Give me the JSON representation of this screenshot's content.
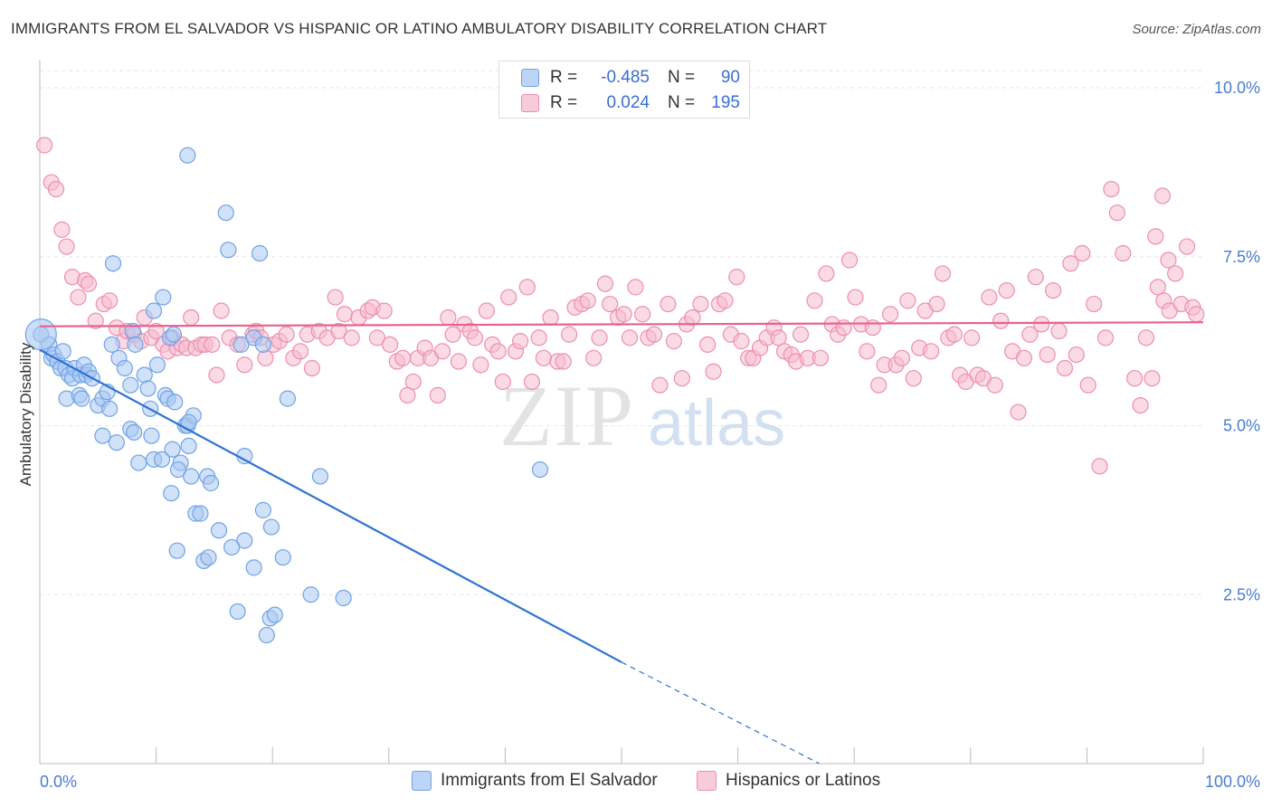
{
  "title": "IMMIGRANTS FROM EL SALVADOR VS HISPANIC OR LATINO AMBULATORY DISABILITY CORRELATION CHART",
  "source": "Source: ZipAtlas.com",
  "watermark": {
    "zip": "ZIP",
    "atlas": "atlas"
  },
  "colors": {
    "blue": "#6fa3e6",
    "blue_fill": "#a9c8f2",
    "pink": "#ec8fb0",
    "pink_fill": "#f5bcd0",
    "blue_line": "#2f72d3",
    "pink_line": "#e8628e",
    "accent_text": "#3b6fd0"
  },
  "legend": {
    "rows": [
      {
        "r_label": "R =",
        "r_value": "-0.485",
        "n_label": "N =",
        "n_value": "90"
      },
      {
        "r_label": "R =",
        "r_value": "0.024",
        "n_label": "N =",
        "n_value": "195"
      }
    ]
  },
  "bottom_legend": {
    "series_a": "Immigrants from El Salvador",
    "series_b": "Hispanics or Latinos"
  },
  "chart_data": {
    "type": "scatter",
    "ylabel": "Ambulatory Disability",
    "xlabel": "",
    "x_tick_labels": [
      "0.0%",
      "100.0%"
    ],
    "y_tick_labels": [
      "2.5%",
      "5.0%",
      "7.5%",
      "10.0%"
    ],
    "y_ticks": [
      2.5,
      5.0,
      7.5,
      10.0
    ],
    "xlim": [
      0,
      100
    ],
    "ylim": [
      0,
      10.2
    ],
    "grid": true,
    "legend_position": "top-center",
    "series": [
      {
        "name": "Immigrants from El Salvador",
        "color": "#6fa3e6",
        "trend": {
          "x": [
            0,
            50,
            67
          ],
          "y": [
            6.12,
            1.5,
            0.0
          ],
          "solid_until_x": 50
        },
        "points": [
          [
            0.1,
            6.35
          ],
          [
            0.8,
            6.2
          ],
          [
            1.0,
            6.0
          ],
          [
            1.2,
            6.05
          ],
          [
            1.5,
            5.95
          ],
          [
            1.8,
            5.85
          ],
          [
            2.0,
            6.1
          ],
          [
            2.2,
            5.85
          ],
          [
            2.5,
            5.75
          ],
          [
            2.8,
            5.7
          ],
          [
            3.0,
            5.85
          ],
          [
            3.5,
            5.75
          ],
          [
            3.8,
            5.9
          ],
          [
            4.0,
            5.75
          ],
          [
            4.2,
            5.8
          ],
          [
            4.5,
            5.7
          ],
          [
            2.3,
            5.4
          ],
          [
            3.4,
            5.45
          ],
          [
            3.6,
            5.4
          ],
          [
            5.0,
            5.3
          ],
          [
            5.4,
            5.4
          ],
          [
            5.8,
            5.5
          ],
          [
            6.0,
            5.25
          ],
          [
            6.8,
            6.0
          ],
          [
            6.2,
            6.2
          ],
          [
            7.3,
            5.85
          ],
          [
            7.8,
            5.6
          ],
          [
            8.0,
            6.4
          ],
          [
            8.2,
            6.2
          ],
          [
            9.0,
            5.75
          ],
          [
            9.3,
            5.55
          ],
          [
            9.5,
            5.25
          ],
          [
            9.8,
            6.7
          ],
          [
            10.1,
            5.9
          ],
          [
            10.6,
            6.9
          ],
          [
            10.8,
            5.45
          ],
          [
            11.2,
            6.3
          ],
          [
            11.5,
            6.35
          ],
          [
            11.0,
            5.4
          ],
          [
            11.6,
            5.35
          ],
          [
            12.5,
            5.0
          ],
          [
            12.7,
            5.0
          ],
          [
            13.2,
            5.15
          ],
          [
            5.4,
            4.85
          ],
          [
            6.6,
            4.75
          ],
          [
            7.8,
            4.95
          ],
          [
            8.1,
            4.9
          ],
          [
            9.6,
            4.85
          ],
          [
            8.5,
            4.45
          ],
          [
            9.8,
            4.5
          ],
          [
            10.5,
            4.5
          ],
          [
            11.4,
            4.65
          ],
          [
            12.1,
            4.45
          ],
          [
            12.8,
            4.7
          ],
          [
            11.9,
            4.35
          ],
          [
            13.0,
            4.25
          ],
          [
            14.4,
            4.25
          ],
          [
            14.7,
            4.15
          ],
          [
            17.6,
            4.55
          ],
          [
            11.3,
            4.0
          ],
          [
            13.4,
            3.7
          ],
          [
            13.8,
            3.7
          ],
          [
            15.4,
            3.45
          ],
          [
            17.6,
            3.3
          ],
          [
            19.2,
            3.75
          ],
          [
            19.9,
            3.5
          ],
          [
            11.8,
            3.15
          ],
          [
            14.1,
            3.0
          ],
          [
            14.5,
            3.05
          ],
          [
            16.5,
            3.2
          ],
          [
            18.4,
            2.9
          ],
          [
            20.9,
            3.05
          ],
          [
            17.0,
            2.25
          ],
          [
            19.8,
            2.15
          ],
          [
            20.2,
            2.2
          ],
          [
            19.5,
            1.9
          ],
          [
            23.3,
            2.5
          ],
          [
            26.1,
            2.45
          ],
          [
            12.7,
            9.0
          ],
          [
            16.0,
            8.15
          ],
          [
            16.2,
            7.6
          ],
          [
            18.9,
            7.55
          ],
          [
            6.3,
            7.4
          ],
          [
            17.3,
            6.2
          ],
          [
            18.4,
            6.3
          ],
          [
            19.2,
            6.2
          ],
          [
            21.3,
            5.4
          ],
          [
            24.1,
            4.25
          ],
          [
            43.0,
            4.35
          ],
          [
            12.8,
            5.05
          ]
        ]
      },
      {
        "name": "Hispanics or Latinos",
        "color": "#ec8fb0",
        "trend": {
          "x": [
            0,
            100
          ],
          "y": [
            6.47,
            6.53
          ],
          "solid_until_x": 100
        },
        "points": [
          [
            0.4,
            9.15
          ],
          [
            1.0,
            8.6
          ],
          [
            1.4,
            8.5
          ],
          [
            1.9,
            7.9
          ],
          [
            2.3,
            7.65
          ],
          [
            2.8,
            7.2
          ],
          [
            3.3,
            6.9
          ],
          [
            3.9,
            7.15
          ],
          [
            4.2,
            7.1
          ],
          [
            4.8,
            6.55
          ],
          [
            5.5,
            6.8
          ],
          [
            6.0,
            6.85
          ],
          [
            6.6,
            6.45
          ],
          [
            7.2,
            6.25
          ],
          [
            7.5,
            6.4
          ],
          [
            8.1,
            6.35
          ],
          [
            8.7,
            6.25
          ],
          [
            9.0,
            6.6
          ],
          [
            9.6,
            6.3
          ],
          [
            10.0,
            6.4
          ],
          [
            10.6,
            6.2
          ],
          [
            11.0,
            6.1
          ],
          [
            11.4,
            6.3
          ],
          [
            11.8,
            6.15
          ],
          [
            12.2,
            6.2
          ],
          [
            12.6,
            6.15
          ],
          [
            13.0,
            6.6
          ],
          [
            13.4,
            6.15
          ],
          [
            13.9,
            6.2
          ],
          [
            14.2,
            6.2
          ],
          [
            14.8,
            6.2
          ],
          [
            15.2,
            5.75
          ],
          [
            15.6,
            6.7
          ],
          [
            16.3,
            6.3
          ],
          [
            17.0,
            6.2
          ],
          [
            17.6,
            5.9
          ],
          [
            18.3,
            6.35
          ],
          [
            18.6,
            6.4
          ],
          [
            19.0,
            6.3
          ],
          [
            19.4,
            6.0
          ],
          [
            20.1,
            6.2
          ],
          [
            20.6,
            6.25
          ],
          [
            21.2,
            6.35
          ],
          [
            21.8,
            6.0
          ],
          [
            22.4,
            6.1
          ],
          [
            23.0,
            6.35
          ],
          [
            23.4,
            5.85
          ],
          [
            24.0,
            6.4
          ],
          [
            24.7,
            6.3
          ],
          [
            25.4,
            6.9
          ],
          [
            25.7,
            6.4
          ],
          [
            26.2,
            6.65
          ],
          [
            26.8,
            6.3
          ],
          [
            27.4,
            6.6
          ],
          [
            28.2,
            6.7
          ],
          [
            28.6,
            6.75
          ],
          [
            29.0,
            6.3
          ],
          [
            29.6,
            6.7
          ],
          [
            30.1,
            6.2
          ],
          [
            30.7,
            5.95
          ],
          [
            31.2,
            6.0
          ],
          [
            31.6,
            5.45
          ],
          [
            32.1,
            5.65
          ],
          [
            32.5,
            6.0
          ],
          [
            33.1,
            6.15
          ],
          [
            33.6,
            6.0
          ],
          [
            34.2,
            5.45
          ],
          [
            34.6,
            6.1
          ],
          [
            35.1,
            6.6
          ],
          [
            35.5,
            6.35
          ],
          [
            36.0,
            5.95
          ],
          [
            36.5,
            6.5
          ],
          [
            37.0,
            6.4
          ],
          [
            37.4,
            6.3
          ],
          [
            37.9,
            5.9
          ],
          [
            38.4,
            6.7
          ],
          [
            38.9,
            6.2
          ],
          [
            39.4,
            6.1
          ],
          [
            39.8,
            5.65
          ],
          [
            40.3,
            6.9
          ],
          [
            40.9,
            6.1
          ],
          [
            41.3,
            6.25
          ],
          [
            41.9,
            7.05
          ],
          [
            42.3,
            5.65
          ],
          [
            42.9,
            6.3
          ],
          [
            43.3,
            6.0
          ],
          [
            43.9,
            6.6
          ],
          [
            44.5,
            5.95
          ],
          [
            45.0,
            5.95
          ],
          [
            45.5,
            6.35
          ],
          [
            46.0,
            6.75
          ],
          [
            46.6,
            6.8
          ],
          [
            47.1,
            6.85
          ],
          [
            47.6,
            6.0
          ],
          [
            48.1,
            6.3
          ],
          [
            48.6,
            7.1
          ],
          [
            49.0,
            6.8
          ],
          [
            49.7,
            6.6
          ],
          [
            50.2,
            6.65
          ],
          [
            50.7,
            6.3
          ],
          [
            51.2,
            7.05
          ],
          [
            51.8,
            6.65
          ],
          [
            52.3,
            6.3
          ],
          [
            52.8,
            6.35
          ],
          [
            53.3,
            5.6
          ],
          [
            54.0,
            6.8
          ],
          [
            54.5,
            6.25
          ],
          [
            55.2,
            5.7
          ],
          [
            55.6,
            6.5
          ],
          [
            56.1,
            6.6
          ],
          [
            56.8,
            6.8
          ],
          [
            57.4,
            6.2
          ],
          [
            57.9,
            5.8
          ],
          [
            58.4,
            6.8
          ],
          [
            58.9,
            6.85
          ],
          [
            59.4,
            6.35
          ],
          [
            59.9,
            7.2
          ],
          [
            60.3,
            6.25
          ],
          [
            60.9,
            6.0
          ],
          [
            61.3,
            6.0
          ],
          [
            61.9,
            6.15
          ],
          [
            62.5,
            6.3
          ],
          [
            63.1,
            6.45
          ],
          [
            63.5,
            6.3
          ],
          [
            64.0,
            6.1
          ],
          [
            64.6,
            6.05
          ],
          [
            65.0,
            5.95
          ],
          [
            65.4,
            6.35
          ],
          [
            66.0,
            6.0
          ],
          [
            66.6,
            6.85
          ],
          [
            67.1,
            6.0
          ],
          [
            67.6,
            7.25
          ],
          [
            68.1,
            6.5
          ],
          [
            68.6,
            6.35
          ],
          [
            69.1,
            6.45
          ],
          [
            69.6,
            7.45
          ],
          [
            70.1,
            6.9
          ],
          [
            70.6,
            6.5
          ],
          [
            71.1,
            6.1
          ],
          [
            71.6,
            6.45
          ],
          [
            72.1,
            5.6
          ],
          [
            72.6,
            5.9
          ],
          [
            73.1,
            6.65
          ],
          [
            73.6,
            5.9
          ],
          [
            74.1,
            6.0
          ],
          [
            74.6,
            6.85
          ],
          [
            75.1,
            5.7
          ],
          [
            75.6,
            6.15
          ],
          [
            76.1,
            6.7
          ],
          [
            76.6,
            6.1
          ],
          [
            77.1,
            6.8
          ],
          [
            77.6,
            7.25
          ],
          [
            78.1,
            6.3
          ],
          [
            78.6,
            6.35
          ],
          [
            79.1,
            5.75
          ],
          [
            79.6,
            5.65
          ],
          [
            80.1,
            6.3
          ],
          [
            80.6,
            5.75
          ],
          [
            81.1,
            5.7
          ],
          [
            81.6,
            6.9
          ],
          [
            82.1,
            5.6
          ],
          [
            82.6,
            6.55
          ],
          [
            83.1,
            7.0
          ],
          [
            83.6,
            6.1
          ],
          [
            84.1,
            5.2
          ],
          [
            84.6,
            6.0
          ],
          [
            85.1,
            6.35
          ],
          [
            85.6,
            7.2
          ],
          [
            86.1,
            6.5
          ],
          [
            86.6,
            6.05
          ],
          [
            87.1,
            7.0
          ],
          [
            87.6,
            6.4
          ],
          [
            88.1,
            5.85
          ],
          [
            88.6,
            7.4
          ],
          [
            89.1,
            6.05
          ],
          [
            89.6,
            7.55
          ],
          [
            90.1,
            5.6
          ],
          [
            90.6,
            6.8
          ],
          [
            91.1,
            4.4
          ],
          [
            91.6,
            6.3
          ],
          [
            92.1,
            8.5
          ],
          [
            92.6,
            8.15
          ],
          [
            93.1,
            7.55
          ],
          [
            94.1,
            5.7
          ],
          [
            94.6,
            5.3
          ],
          [
            95.1,
            6.3
          ],
          [
            95.6,
            5.7
          ],
          [
            96.1,
            7.05
          ],
          [
            96.6,
            6.85
          ],
          [
            97.1,
            6.7
          ],
          [
            97.6,
            7.25
          ],
          [
            98.1,
            6.8
          ],
          [
            98.6,
            7.65
          ],
          [
            99.1,
            6.75
          ],
          [
            99.4,
            6.65
          ],
          [
            96.5,
            8.4
          ],
          [
            97.0,
            7.45
          ],
          [
            95.9,
            7.8
          ]
        ]
      }
    ]
  }
}
